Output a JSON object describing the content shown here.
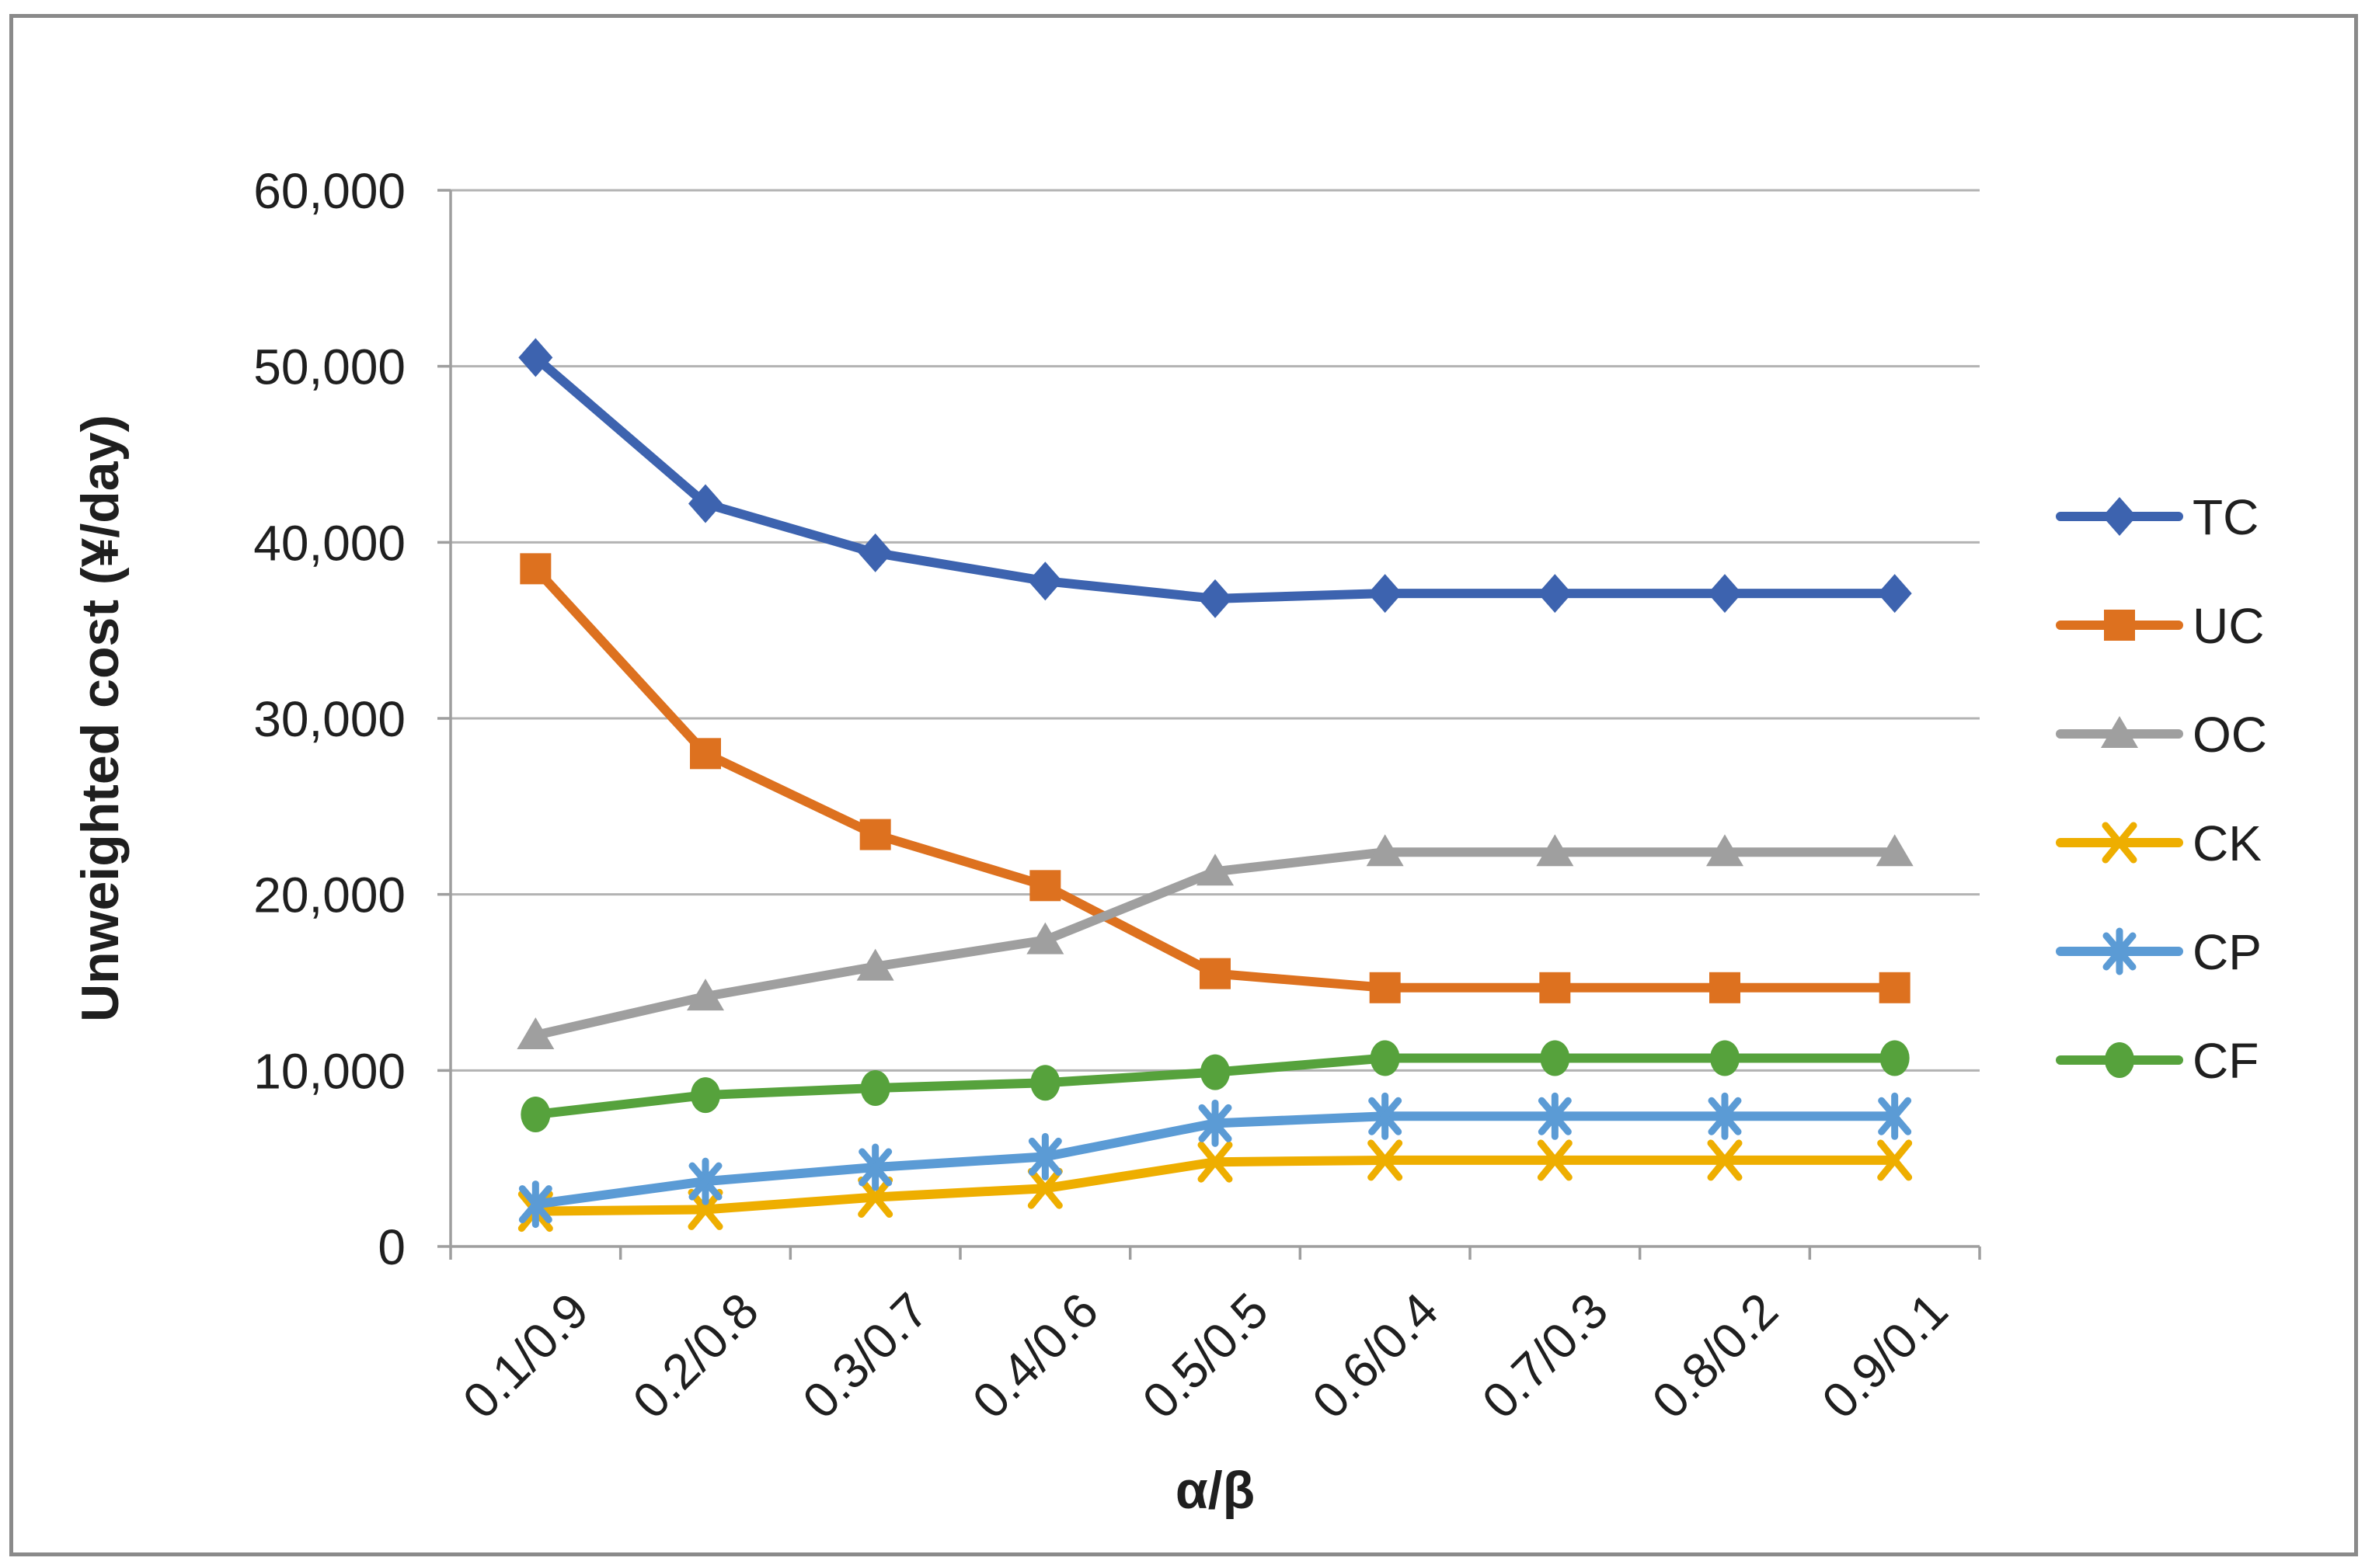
{
  "chart_data": {
    "type": "line",
    "title": "",
    "xlabel": "α/β",
    "ylabel": "Unweighted cost (¥/day)",
    "categories": [
      "0.1/0.9",
      "0.2/0.8",
      "0.3/0.7",
      "0.4/0.6",
      "0.5/0.5",
      "0.6/0.4",
      "0.7/0.3",
      "0.8/0.2",
      "0.9/0.1"
    ],
    "ylim": [
      0,
      60000
    ],
    "ytick_step": 10000,
    "ytick_labels": [
      "0",
      "10,000",
      "20,000",
      "30,000",
      "40,000",
      "50,000",
      "60,000"
    ],
    "grid": true,
    "legend_position": "right",
    "series": [
      {
        "name": "TC",
        "marker": "diamond",
        "color": "#3d63af",
        "values": [
          50500,
          42200,
          39400,
          37800,
          36800,
          37100,
          37100,
          37100,
          37100
        ]
      },
      {
        "name": "UC",
        "marker": "square",
        "color": "#dd711f",
        "values": [
          38500,
          28000,
          23400,
          20500,
          15500,
          14700,
          14700,
          14700,
          14700
        ]
      },
      {
        "name": "OC",
        "marker": "triangle",
        "color": "#9f9f9f",
        "values": [
          12000,
          14200,
          15900,
          17400,
          21300,
          22400,
          22400,
          22400,
          22400
        ]
      },
      {
        "name": "CK",
        "marker": "x",
        "color": "#eeae00",
        "values": [
          2000,
          2100,
          2800,
          3300,
          4800,
          4900,
          4900,
          4900,
          4900
        ]
      },
      {
        "name": "CP",
        "marker": "asterisk",
        "color": "#5b9bd5",
        "values": [
          2400,
          3700,
          4500,
          5100,
          7000,
          7400,
          7400,
          7400,
          7400
        ]
      },
      {
        "name": "CF",
        "marker": "circle",
        "color": "#56a23c",
        "values": [
          7500,
          8600,
          9000,
          9300,
          9900,
          10700,
          10700,
          10700,
          10700
        ]
      }
    ],
    "colors": {
      "gridline": "#b3b3b3",
      "axis": "#9e9e9e",
      "text": "#1f1f1f",
      "frame_border": "#8a8a8a"
    }
  }
}
